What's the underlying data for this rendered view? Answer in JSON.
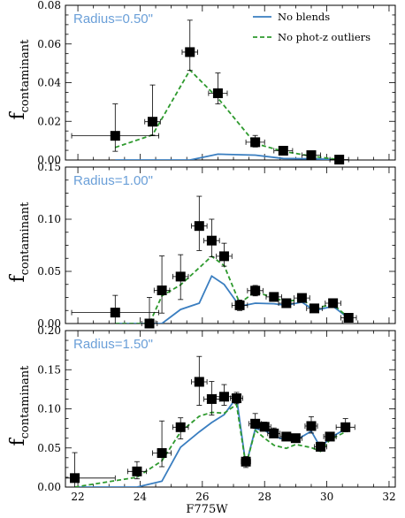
{
  "chart_data": {
    "type": "scatter",
    "xlabel": "F775W",
    "ylabel_main": "f",
    "ylabel_sub": "contaminant",
    "xlim": [
      21.6,
      32.2
    ],
    "xticks": [
      22,
      24,
      26,
      28,
      30,
      32
    ],
    "colors": {
      "blend": "#3a7ec0",
      "photz": "#2e9a2e",
      "label": "#6a9fd8",
      "marker": "#000000"
    },
    "legend": [
      {
        "name": "No blends",
        "style": "solid"
      },
      {
        "name": "No phot-z outliers",
        "style": "dashed"
      }
    ],
    "panels": [
      {
        "label": "Radius=0.50\"",
        "ylim": [
          0,
          0.08
        ],
        "yticks": [
          0.0,
          0.02,
          0.04,
          0.06,
          0.08
        ],
        "ytick_labels": [
          "0.00",
          "0.02",
          "0.04",
          "0.06",
          "0.08"
        ],
        "points": [
          {
            "x": 23.2,
            "y": 0.0125,
            "xerr": 1.4,
            "yerr": [
              0.008,
              0.0165
            ]
          },
          {
            "x": 24.4,
            "y": 0.0198,
            "xerr": 0.25,
            "yerr": [
              0.007,
              0.019
            ]
          },
          {
            "x": 25.6,
            "y": 0.0558,
            "xerr": 0.25,
            "yerr": [
              0.0095,
              0.0165
            ]
          },
          {
            "x": 26.5,
            "y": 0.0345,
            "xerr": 0.3,
            "yerr": [
              0.0055,
              0.0105
            ]
          },
          {
            "x": 27.7,
            "y": 0.0092,
            "xerr": 0.3,
            "yerr": [
              0.0025,
              0.0035
            ]
          },
          {
            "x": 28.6,
            "y": 0.0048,
            "xerr": 0.3,
            "yerr": [
              0.0015,
              0.0015
            ]
          },
          {
            "x": 29.5,
            "y": 0.0025,
            "xerr": 0.3,
            "yerr": [
              0.0012,
              0.0015
            ]
          },
          {
            "x": 30.4,
            "y": 0.0002,
            "xerr": 0.3,
            "yerr": [
              0.0002,
              0.0005
            ]
          }
        ],
        "no_blends": {
          "x": [
            23.2,
            24.4,
            25.6,
            26.5,
            27.7,
            28.6,
            29.5,
            30.4
          ],
          "y": [
            0.0,
            0.0,
            0.0,
            0.003,
            0.0025,
            0.0008,
            0.0006,
            0.0002
          ]
        },
        "no_photz": {
          "x": [
            23.2,
            24.4,
            25.6,
            26.5,
            27.7,
            28.6,
            29.5,
            30.4
          ],
          "y": [
            0.0065,
            0.013,
            0.0465,
            0.032,
            0.0085,
            0.0045,
            0.002,
            0.0002
          ]
        }
      },
      {
        "label": "Radius=1.00\"",
        "ylim": [
          0,
          0.15
        ],
        "yticks": [
          0.0,
          0.05,
          0.1,
          0.15
        ],
        "ytick_labels": [
          "0.00",
          "0.05",
          "0.10",
          "0.15"
        ],
        "points": [
          {
            "x": 23.2,
            "y": 0.0105,
            "xerr": 1.4,
            "yerr": [
              0.0105,
              0.0165
            ]
          },
          {
            "x": 24.3,
            "y": 0.0,
            "xerr": 0.25,
            "yerr": [
              0.0,
              0.025
            ]
          },
          {
            "x": 24.7,
            "y": 0.0318,
            "xerr": 0.25,
            "yerr": [
              0.0218,
              0.033
            ]
          },
          {
            "x": 25.3,
            "y": 0.045,
            "xerr": 0.25,
            "yerr": [
              0.022,
              0.021
            ]
          },
          {
            "x": 25.9,
            "y": 0.0935,
            "xerr": 0.25,
            "yerr": [
              0.0235,
              0.0285
            ]
          },
          {
            "x": 26.3,
            "y": 0.0795,
            "xerr": 0.25,
            "yerr": [
              0.0155,
              0.0205
            ]
          },
          {
            "x": 26.7,
            "y": 0.0645,
            "xerr": 0.25,
            "yerr": [
              0.0095,
              0.0125
            ]
          },
          {
            "x": 27.2,
            "y": 0.0175,
            "xerr": 0.25,
            "yerr": [
              0.005,
              0.005
            ]
          },
          {
            "x": 27.7,
            "y": 0.0315,
            "xerr": 0.25,
            "yerr": [
              0.005,
              0.005
            ]
          },
          {
            "x": 28.3,
            "y": 0.0255,
            "xerr": 0.25,
            "yerr": [
              0.004,
              0.004
            ]
          },
          {
            "x": 28.7,
            "y": 0.0195,
            "xerr": 0.25,
            "yerr": [
              0.004,
              0.004
            ]
          },
          {
            "x": 29.2,
            "y": 0.0245,
            "xerr": 0.25,
            "yerr": [
              0.004,
              0.004
            ]
          },
          {
            "x": 29.6,
            "y": 0.0145,
            "xerr": 0.25,
            "yerr": [
              0.003,
              0.003
            ]
          },
          {
            "x": 30.2,
            "y": 0.0195,
            "xerr": 0.25,
            "yerr": [
              0.004,
              0.004
            ]
          },
          {
            "x": 30.7,
            "y": 0.0055,
            "xerr": 0.25,
            "yerr": [
              0.003,
              0.003
            ]
          }
        ],
        "no_blends": {
          "x": [
            23.2,
            24.3,
            24.7,
            25.3,
            25.9,
            26.3,
            26.7,
            27.2,
            27.7,
            28.3,
            28.7,
            29.2,
            29.6,
            30.2,
            30.7
          ],
          "y": [
            0.0,
            0.0,
            0.0,
            0.0135,
            0.0195,
            0.0455,
            0.0375,
            0.0165,
            0.0195,
            0.019,
            0.0175,
            0.0205,
            0.0125,
            0.0165,
            0.005
          ]
        },
        "no_photz": {
          "x": [
            23.2,
            24.3,
            24.7,
            25.3,
            25.9,
            26.3,
            26.7,
            27.2,
            27.7,
            28.3,
            28.7,
            29.2,
            29.6,
            30.2,
            30.7
          ],
          "y": [
            0.0,
            0.0,
            0.0265,
            0.037,
            0.0535,
            0.0645,
            0.0555,
            0.0195,
            0.0305,
            0.0245,
            0.021,
            0.0235,
            0.0145,
            0.0185,
            0.0055
          ]
        }
      },
      {
        "label": "Radius=1.50\"",
        "ylim": [
          0,
          0.2
        ],
        "yticks": [
          0.0,
          0.05,
          0.1,
          0.15,
          0.2
        ],
        "ytick_labels": [
          "0.00",
          "0.05",
          "0.10",
          "0.15",
          "0.20"
        ],
        "points": [
          {
            "x": 21.9,
            "y": 0.0115,
            "xerr": 1.3,
            "yerr": [
              0.0115,
              0.0325
            ]
          },
          {
            "x": 23.9,
            "y": 0.02,
            "xerr": 0.3,
            "yerr": [
              0.0095,
              0.0125
            ]
          },
          {
            "x": 24.7,
            "y": 0.0435,
            "xerr": 0.3,
            "yerr": [
              0.0175,
              0.041
            ]
          },
          {
            "x": 25.3,
            "y": 0.0765,
            "xerr": 0.25,
            "yerr": [
              0.015,
              0.012
            ]
          },
          {
            "x": 25.9,
            "y": 0.1345,
            "xerr": 0.25,
            "yerr": [
              0.03,
              0.0325
            ]
          },
          {
            "x": 26.3,
            "y": 0.1125,
            "xerr": 0.25,
            "yerr": [
              0.0205,
              0.0225
            ]
          },
          {
            "x": 26.7,
            "y": 0.1155,
            "xerr": 0.25,
            "yerr": [
              0.011,
              0.0155
            ]
          },
          {
            "x": 27.1,
            "y": 0.1135,
            "xerr": 0.2,
            "yerr": [
              0.007,
              0.0075
            ]
          },
          {
            "x": 27.4,
            "y": 0.0325,
            "xerr": 0.15,
            "yerr": [
              0.0075,
              0.0065
            ]
          },
          {
            "x": 27.7,
            "y": 0.081,
            "xerr": 0.2,
            "yerr": [
              0.006,
              0.013
            ]
          },
          {
            "x": 28.0,
            "y": 0.077,
            "xerr": 0.2,
            "yerr": [
              0.005,
              0.006
            ]
          },
          {
            "x": 28.3,
            "y": 0.0685,
            "xerr": 0.2,
            "yerr": [
              0.005,
              0.007
            ]
          },
          {
            "x": 28.7,
            "y": 0.0645,
            "xerr": 0.2,
            "yerr": [
              0.005,
              0.005
            ]
          },
          {
            "x": 29.0,
            "y": 0.0625,
            "xerr": 0.2,
            "yerr": [
              0.005,
              0.005
            ]
          },
          {
            "x": 29.5,
            "y": 0.078,
            "xerr": 0.2,
            "yerr": [
              0.009,
              0.012
            ]
          },
          {
            "x": 29.8,
            "y": 0.0515,
            "xerr": 0.2,
            "yerr": [
              0.005,
              0.006
            ]
          },
          {
            "x": 30.1,
            "y": 0.0645,
            "xerr": 0.2,
            "yerr": [
              0.005,
              0.005
            ]
          },
          {
            "x": 30.6,
            "y": 0.0765,
            "xerr": 0.3,
            "yerr": [
              0.006,
              0.011
            ]
          }
        ],
        "no_blends": {
          "x": [
            21.9,
            23.9,
            24.7,
            25.3,
            25.9,
            26.3,
            26.7,
            27.1,
            27.4,
            27.7,
            28.0,
            28.3,
            28.7,
            29.0,
            29.5,
            29.8,
            30.1,
            30.6
          ],
          "y": [
            0.0,
            0.0,
            0.0075,
            0.051,
            0.0705,
            0.0825,
            0.0925,
            0.1145,
            0.0275,
            0.0745,
            0.0725,
            0.0645,
            0.0605,
            0.0595,
            0.0715,
            0.0505,
            0.0625,
            0.0745
          ]
        },
        "no_photz": {
          "x": [
            21.9,
            23.9,
            24.7,
            25.3,
            25.9,
            26.3,
            26.7,
            27.1,
            27.4,
            27.7,
            28.0,
            28.3,
            28.7,
            29.0,
            29.5,
            29.8,
            30.1,
            30.6
          ],
          "y": [
            0.0,
            0.0125,
            0.0335,
            0.0705,
            0.0905,
            0.0955,
            0.0945,
            0.1055,
            0.0275,
            0.0725,
            0.0625,
            0.0535,
            0.0495,
            0.0545,
            0.0505,
            0.0455,
            0.0605,
            0.0705
          ]
        }
      }
    ]
  }
}
